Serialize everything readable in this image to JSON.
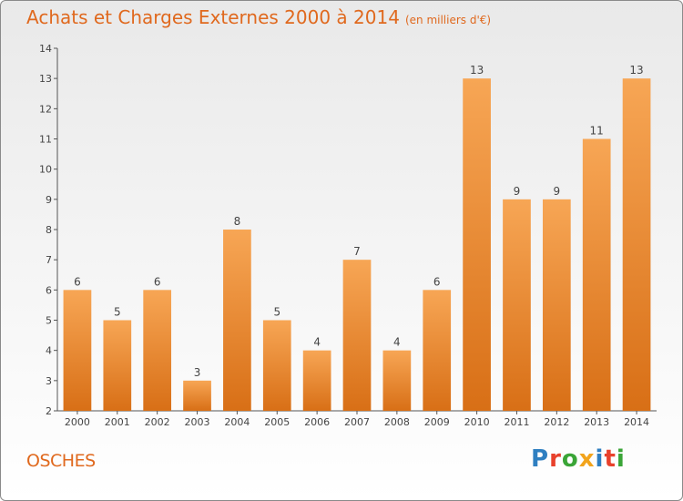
{
  "header": {
    "title": "Achats et Charges Externes 2000 à 2014",
    "subtitle": "(en milliers d'€)"
  },
  "footer": {
    "commune": "OSCHES",
    "logo_text": "Proxiti",
    "logo_colors": [
      "#2f7fc1",
      "#e8412c",
      "#3aa537",
      "#f2a41c",
      "#2f7fc1",
      "#e8412c",
      "#3aa537"
    ]
  },
  "colors": {
    "bar_light": "#f7a655",
    "bar_dark": "#d86f16",
    "axis": "#555555",
    "text": "#444444"
  },
  "chart_data": {
    "type": "bar",
    "title": "Achats et Charges Externes 2000 à 2014",
    "subtitle": "(en milliers d'€)",
    "categories": [
      "2000",
      "2001",
      "2002",
      "2003",
      "2004",
      "2005",
      "2006",
      "2007",
      "2008",
      "2009",
      "2010",
      "2011",
      "2012",
      "2013",
      "2014"
    ],
    "values": [
      6,
      5,
      6,
      3,
      8,
      5,
      4,
      7,
      4,
      6,
      13,
      9,
      9,
      11,
      13
    ],
    "ylim": [
      2,
      14
    ],
    "yticks": [
      2,
      3,
      4,
      5,
      6,
      7,
      8,
      9,
      10,
      11,
      12,
      13,
      14
    ],
    "grid": false,
    "legend": "none"
  }
}
